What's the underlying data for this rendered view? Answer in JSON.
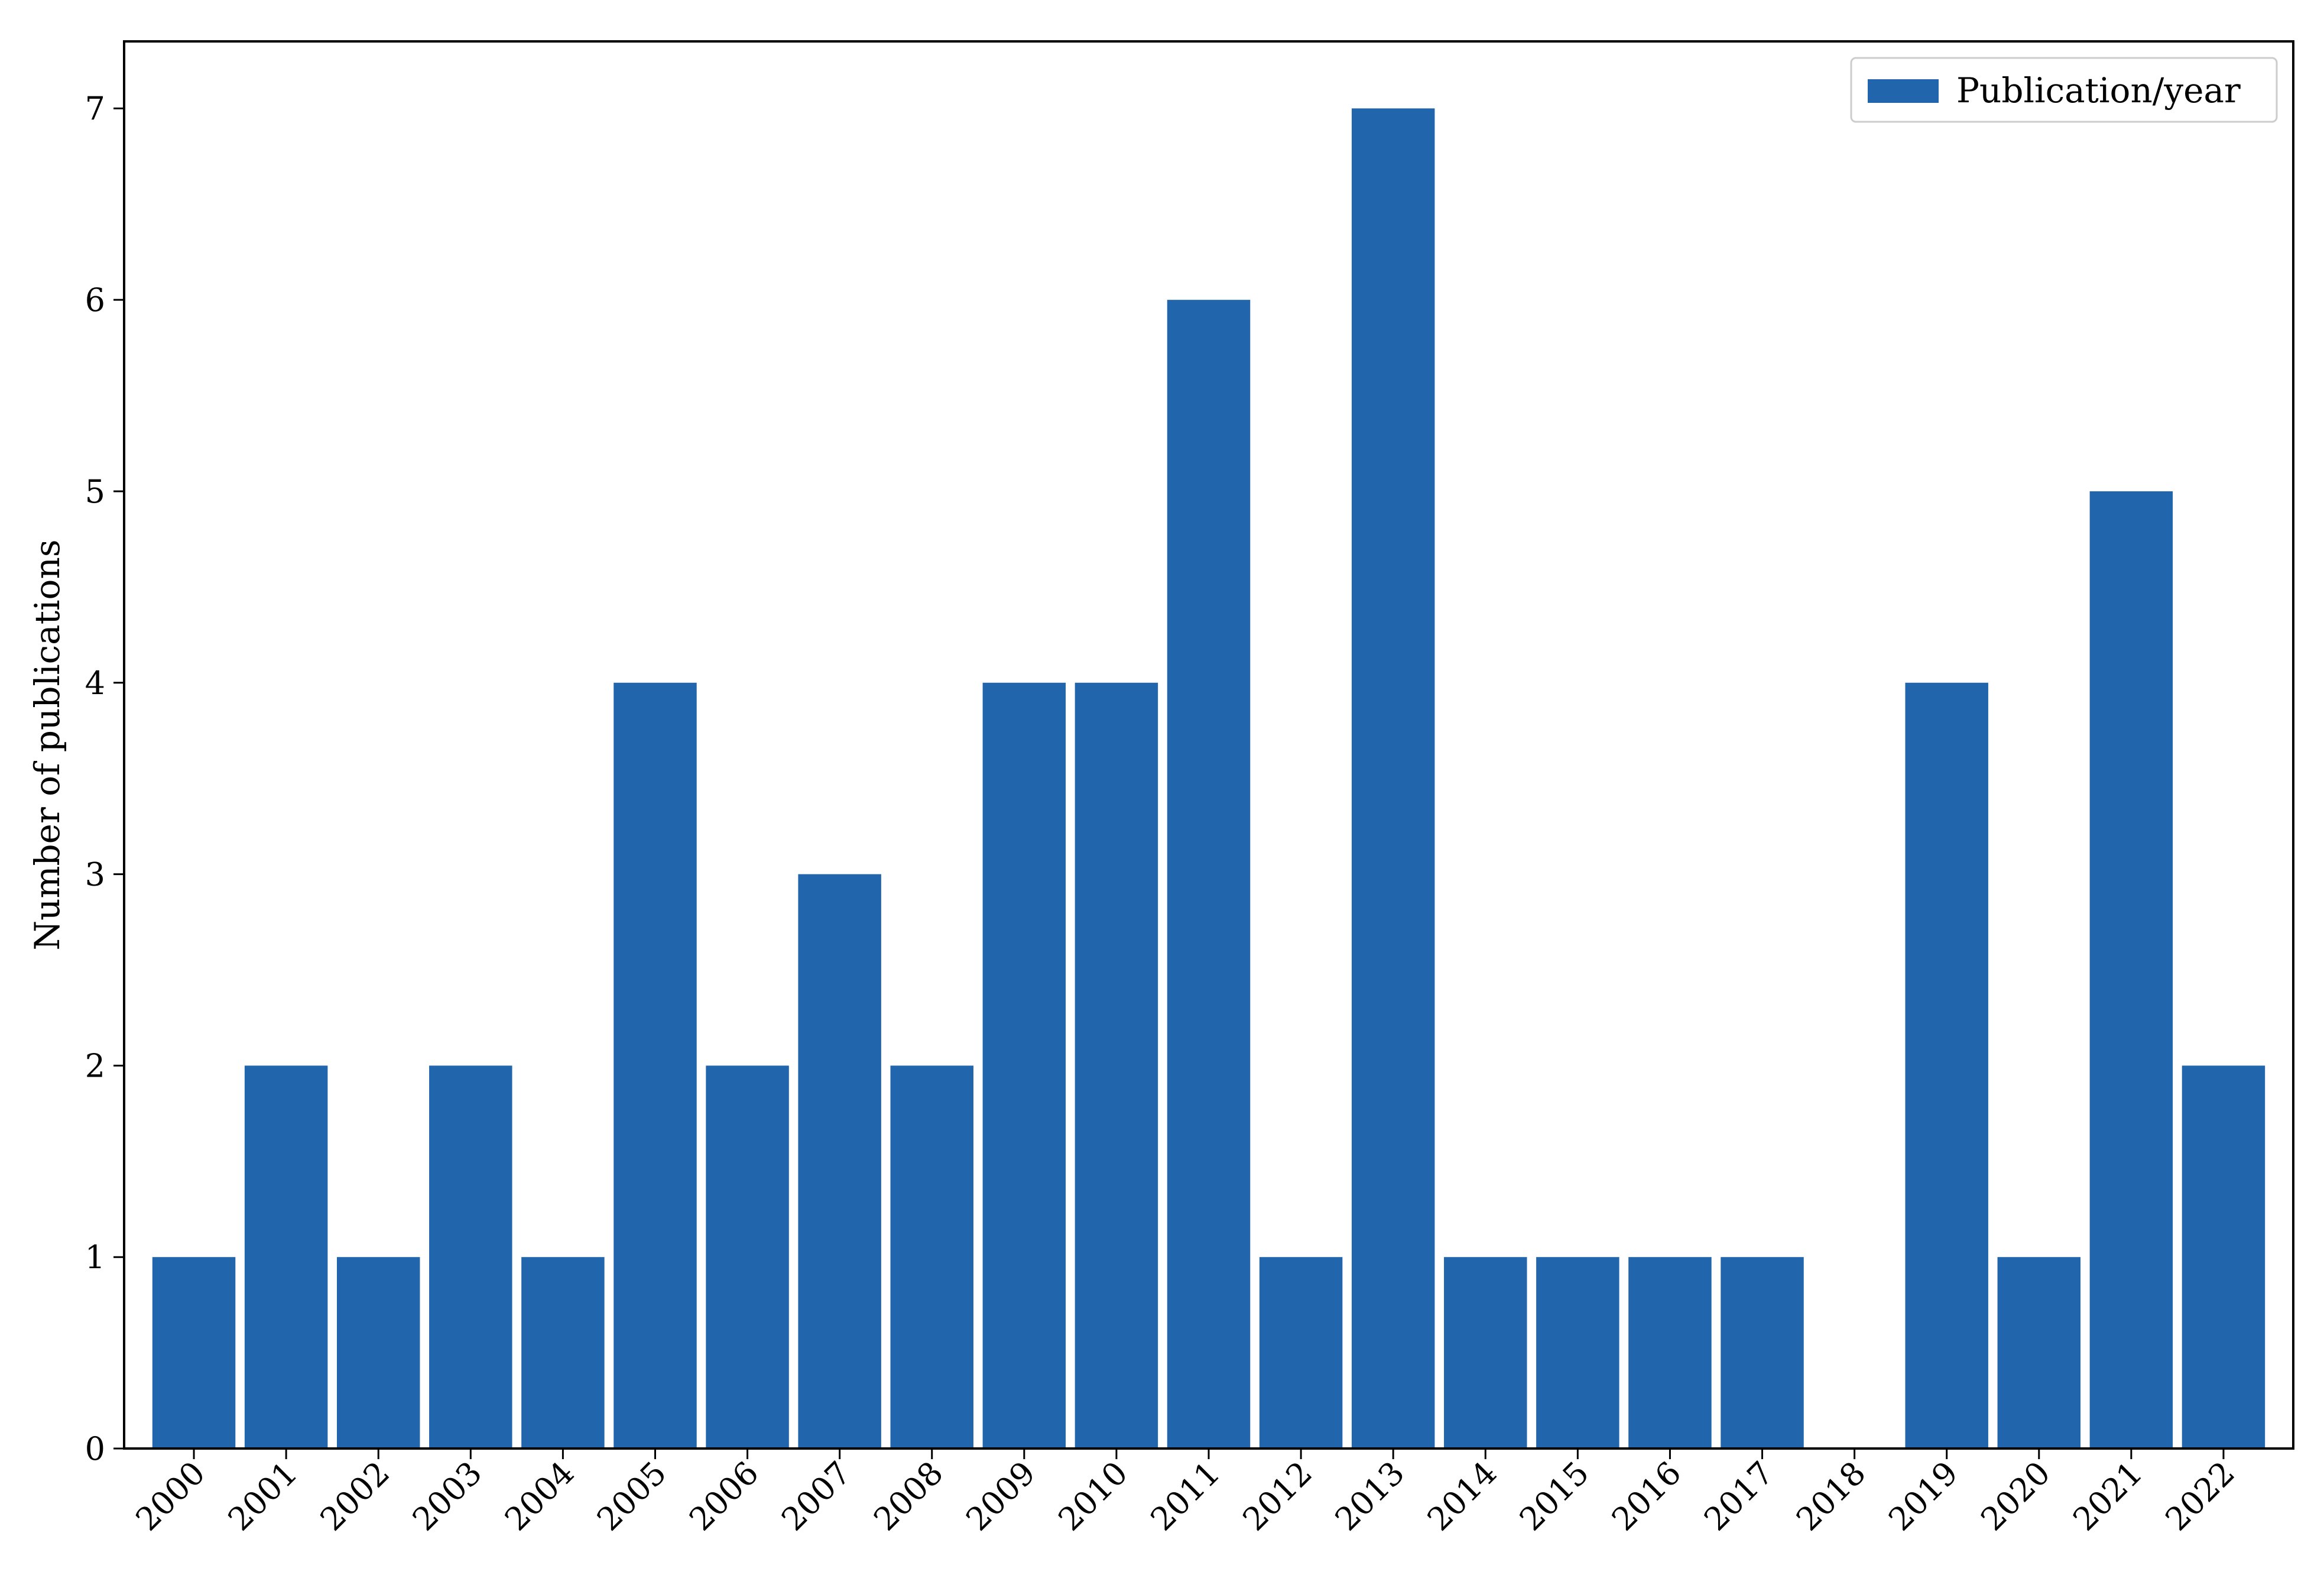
{
  "chart_data": {
    "type": "bar",
    "categories": [
      "2000",
      "2001",
      "2002",
      "2003",
      "2004",
      "2005",
      "2006",
      "2007",
      "2008",
      "2009",
      "2010",
      "2011",
      "2012",
      "2013",
      "2014",
      "2015",
      "2016",
      "2017",
      "2018",
      "2019",
      "2020",
      "2021",
      "2022"
    ],
    "series": [
      {
        "name": "Publication/year",
        "values": [
          1,
          2,
          1,
          2,
          1,
          4,
          2,
          3,
          2,
          4,
          4,
          6,
          1,
          7,
          1,
          1,
          1,
          1,
          0,
          4,
          1,
          5,
          2
        ],
        "color": "#2166ac"
      }
    ],
    "title": "",
    "xlabel": "",
    "ylabel": "Number of publications",
    "ylim": [
      0,
      7.35
    ],
    "yticks": [
      0,
      1,
      2,
      3,
      4,
      5,
      6,
      7
    ],
    "x_tick_rotation": "45 degrees",
    "grid": false,
    "legend_position": "top-right"
  }
}
